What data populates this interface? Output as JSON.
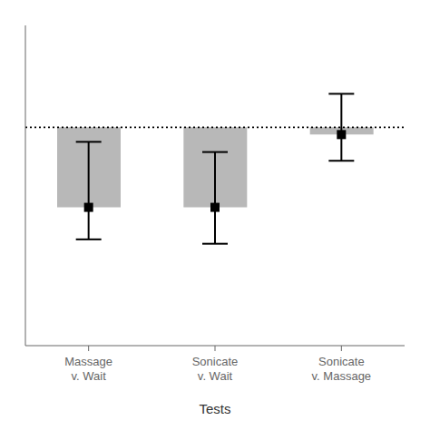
{
  "chart_data": {
    "type": "bar",
    "categories": [
      "Massage\nv. Wait",
      "Sonicate\nv. Wait",
      "Sonicate\nv. Massage"
    ],
    "values": [
      1.55,
      1.55,
      1.05
    ],
    "baseline": 1.0,
    "error_minus": [
      0.45,
      0.38,
      0.28
    ],
    "error_plus": [
      0.22,
      0.25,
      0.18
    ],
    "color": "#b8b8b8",
    "marker": "square",
    "xlabel": "Tests",
    "ylim": [
      2.5,
      0.3
    ],
    "yticks": [],
    "tick_labels": "x",
    "grid": false
  }
}
